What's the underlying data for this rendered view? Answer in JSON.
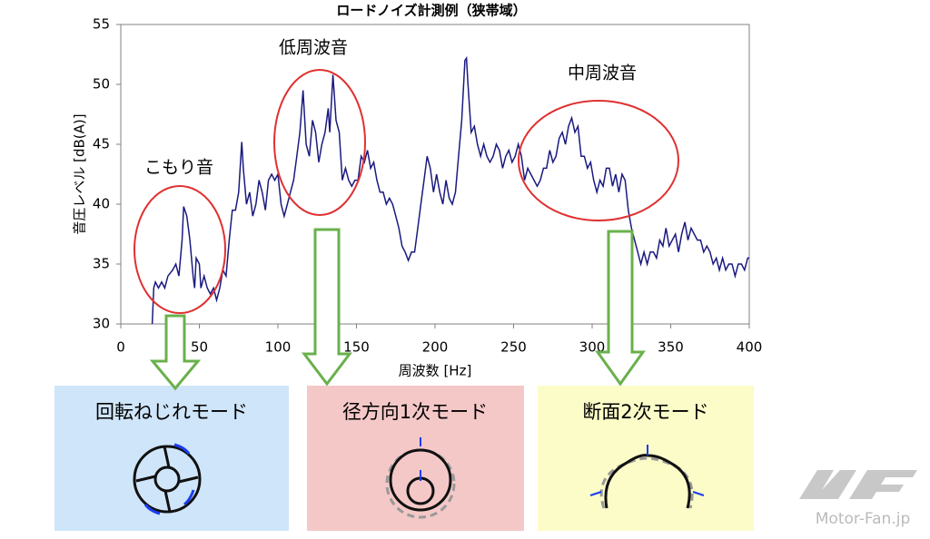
{
  "chart_data": {
    "type": "line",
    "title": "ロードノイズ計測例（狭帯域）",
    "x_label": "周波数 [Hz]",
    "y_label": "音圧レベル [dB(A)]",
    "xlim": [
      0,
      400
    ],
    "xticks": [
      0,
      50,
      100,
      150,
      200,
      250,
      300,
      350,
      400
    ],
    "ylim": [
      30,
      55
    ],
    "yticks": [
      30,
      35,
      40,
      45,
      50,
      55
    ],
    "grid": false,
    "x": [
      20,
      21,
      22,
      24,
      26,
      28,
      30,
      33,
      35,
      37,
      39,
      40,
      42,
      44,
      46,
      47,
      48,
      50,
      51,
      53,
      55,
      57,
      59,
      61,
      63,
      65,
      67,
      69,
      71,
      73,
      75,
      77,
      78,
      80,
      82,
      84,
      86,
      88,
      90,
      92,
      94,
      96,
      98,
      100,
      102,
      104,
      106,
      108,
      110,
      112,
      114,
      116,
      118,
      120,
      122,
      124,
      126,
      128,
      130,
      132,
      133,
      135,
      137,
      139,
      141,
      143,
      145,
      147,
      149,
      151,
      153,
      155,
      157,
      159,
      161,
      163,
      165,
      167,
      169,
      171,
      173,
      175,
      177,
      179,
      181,
      183,
      185,
      187,
      189,
      191,
      193,
      195,
      197,
      199,
      201,
      203,
      205,
      207,
      209,
      211,
      213,
      215,
      217,
      219,
      220,
      221,
      223,
      225,
      227,
      229,
      231,
      233,
      235,
      237,
      239,
      241,
      243,
      245,
      247,
      249,
      251,
      253,
      255,
      257,
      259,
      261,
      263,
      265,
      267,
      269,
      271,
      273,
      275,
      277,
      279,
      281,
      283,
      285,
      287,
      289,
      291,
      293,
      295,
      297,
      299,
      301,
      303,
      305,
      307,
      309,
      311,
      313,
      315,
      317,
      319,
      321,
      323,
      325,
      327,
      329,
      331,
      333,
      335,
      337,
      339,
      341,
      343,
      345,
      347,
      349,
      351,
      353,
      355,
      357,
      359,
      361,
      363,
      365,
      367,
      369,
      371,
      373,
      375,
      377,
      379,
      381,
      383,
      385,
      387,
      389,
      391,
      393,
      395,
      397,
      399,
      400
    ],
    "series": [
      {
        "name": "音圧レベル",
        "color": "#1a1a80",
        "values": [
          30,
          33,
          33.5,
          33,
          33.5,
          33,
          34,
          34.5,
          35,
          34,
          37,
          39.8,
          39,
          37,
          34,
          33,
          35.5,
          35,
          33,
          34,
          33,
          32.5,
          33,
          32,
          33,
          34.5,
          34,
          37,
          39.5,
          39.5,
          41,
          45.2,
          43,
          40,
          41,
          39,
          40,
          42,
          41,
          39.5,
          42,
          42.5,
          42,
          42.5,
          40,
          39,
          40,
          41,
          42,
          44,
          46,
          49.5,
          45,
          44,
          47,
          46,
          43.5,
          45,
          46,
          48,
          46,
          50.8,
          47,
          46,
          42,
          43,
          42,
          41.5,
          42,
          42,
          44,
          43.5,
          44.5,
          43,
          43.5,
          42,
          41,
          41,
          40,
          40.5,
          40,
          39,
          38,
          36.5,
          36,
          35.3,
          36,
          36,
          38,
          40,
          42,
          44,
          43,
          41,
          42.5,
          41,
          40,
          42,
          40.5,
          40,
          41,
          44,
          47,
          52,
          52.2,
          50,
          46,
          46.5,
          45,
          44,
          45,
          44,
          43.5,
          44,
          45,
          44.5,
          43,
          44,
          44.5,
          43.5,
          44,
          45,
          44,
          42,
          43,
          42.5,
          42,
          41.5,
          42,
          43,
          43,
          44.5,
          43.5,
          44,
          45.5,
          46,
          45,
          46.5,
          47.2,
          46,
          46.5,
          44,
          44,
          43,
          43.5,
          42,
          41,
          42,
          41.5,
          43,
          43,
          41.5,
          42.5,
          41,
          42.5,
          42,
          39.5,
          38,
          37,
          36,
          35,
          36,
          35,
          36,
          36,
          35.5,
          37,
          36.5,
          38,
          36.5,
          37,
          37.5,
          36,
          37.5,
          38.5,
          37,
          38,
          37.5,
          37,
          37,
          36,
          36.5,
          36,
          35,
          35.5,
          34.5,
          35.5,
          34.5,
          35,
          35,
          34,
          35,
          35,
          34.5,
          35.5,
          35.5
        ]
      }
    ],
    "annotations": [
      "こもり音",
      "低周波音",
      "中周波音"
    ]
  },
  "modes": [
    "回転ねじれモード",
    "径方向1次モード",
    "断面2次モード"
  ],
  "watermark": "Motor-Fan.jp"
}
